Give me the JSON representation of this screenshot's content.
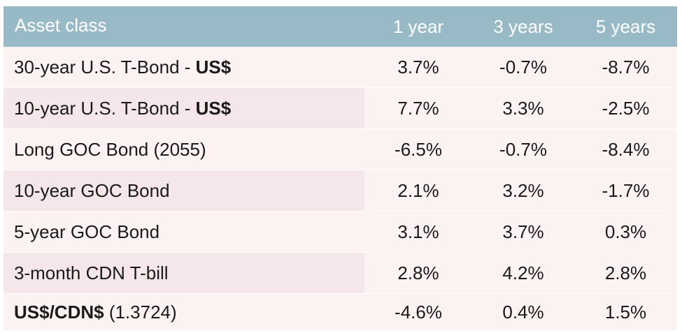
{
  "table": {
    "headers": {
      "asset_class": "Asset class",
      "one_year": "1 year",
      "three_years": "3 years",
      "five_years": "5 years"
    },
    "rows": [
      {
        "asset": "30-year U.S. T-Bond - ",
        "asset_bold": "US$",
        "one_year": "3.7%",
        "three_years": "-0.7%",
        "five_years": "-8.7%"
      },
      {
        "asset": "10-year U.S. T-Bond - ",
        "asset_bold": "US$",
        "one_year": "7.7%",
        "three_years": "3.3%",
        "five_years": "-2.5%"
      },
      {
        "asset": "Long GOC Bond (2055)",
        "one_year": "-6.5%",
        "three_years": "-0.7%",
        "five_years": "-8.4%"
      },
      {
        "asset": "10-year GOC Bond",
        "one_year": "2.1%",
        "three_years": "3.2%",
        "five_years": "-1.7%"
      },
      {
        "asset": "5-year GOC Bond",
        "one_year": "3.1%",
        "three_years": "3.7%",
        "five_years": "0.3%"
      },
      {
        "asset": "3-month CDN T-bill",
        "one_year": "2.8%",
        "three_years": "4.2%",
        "five_years": "2.8%"
      },
      {
        "asset_bold": "US$/CDN$",
        "asset": " (1.3724)",
        "one_year": "-4.6%",
        "three_years": "0.4%",
        "five_years": "1.5%"
      }
    ]
  },
  "colors": {
    "header_bg": "#98b9c6",
    "row_bg": "#fdf2f2",
    "row_shaded_bg": "#f5e6e9"
  }
}
